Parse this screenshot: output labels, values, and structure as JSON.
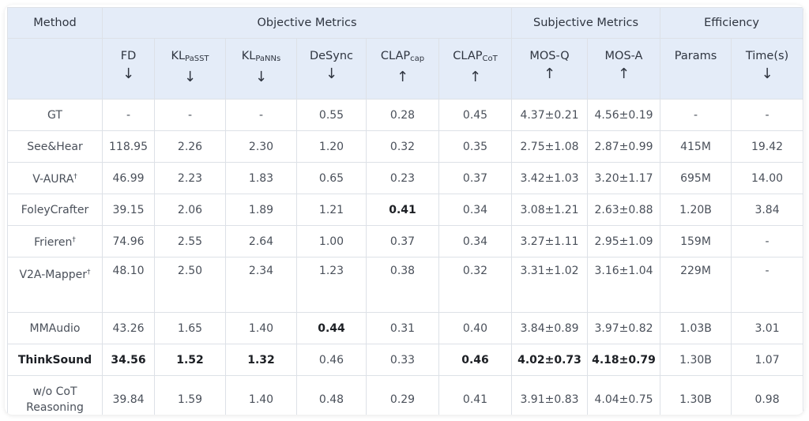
{
  "header": {
    "method": "Method",
    "groups": {
      "objective": "Objective Metrics",
      "subjective": "Subjective Metrics",
      "efficiency": "Efficiency"
    },
    "columns": [
      {
        "main": "FD",
        "sub": "",
        "arrow": "↓"
      },
      {
        "main": "KL",
        "sub": "PaSST",
        "arrow": "↓"
      },
      {
        "main": "KL",
        "sub": "PaNNs",
        "arrow": "↓"
      },
      {
        "main": "DeSync",
        "sub": "",
        "arrow": "↓"
      },
      {
        "main": "CLAP",
        "sub": "cap",
        "arrow": "↑"
      },
      {
        "main": "CLAP",
        "sub": "CoT",
        "arrow": "↑"
      },
      {
        "main": "MOS-Q",
        "sub": "",
        "arrow": "↑"
      },
      {
        "main": "MOS-A",
        "sub": "",
        "arrow": "↑"
      },
      {
        "main": "Params",
        "sub": "",
        "arrow": ""
      },
      {
        "main": "Time(s)",
        "sub": "",
        "arrow": "↓"
      }
    ]
  },
  "rows": [
    {
      "method": "GT",
      "dagger": "",
      "cells": [
        "-",
        "-",
        "-",
        "0.55",
        "0.28",
        "0.45",
        "4.37±0.21",
        "4.56±0.19",
        "-",
        "-"
      ]
    },
    {
      "method": "See&Hear",
      "dagger": "",
      "cells": [
        "118.95",
        "2.26",
        "2.30",
        "1.20",
        "0.32",
        "0.35",
        "2.75±1.08",
        "2.87±0.99",
        "415M",
        "19.42"
      ]
    },
    {
      "method": "V-AURA",
      "dagger": "†",
      "cells": [
        "46.99",
        "2.23",
        "1.83",
        "0.65",
        "0.23",
        "0.37",
        "3.42±1.03",
        "3.20±1.17",
        "695M",
        "14.00"
      ]
    },
    {
      "method": "FoleyCrafter",
      "dagger": "",
      "cells": [
        "39.15",
        "2.06",
        "1.89",
        "1.21",
        "0.41",
        "0.34",
        "3.08±1.21",
        "2.63±0.88",
        "1.20B",
        "3.84"
      ]
    },
    {
      "method": "Frieren",
      "dagger": "†",
      "cells": [
        "74.96",
        "2.55",
        "2.64",
        "1.00",
        "0.37",
        "0.34",
        "3.27±1.11",
        "2.95±1.09",
        "159M",
        "-"
      ]
    },
    {
      "method": "V2A-Mapper",
      "dagger": "†",
      "cells": [
        "48.10",
        "2.50",
        "2.34",
        "1.23",
        "0.38",
        "0.32",
        "3.31±1.02",
        "3.16±1.04",
        "229M",
        "-"
      ]
    },
    {
      "method": "MMAudio",
      "dagger": "",
      "cells": [
        "43.26",
        "1.65",
        "1.40",
        "0.44",
        "0.31",
        "0.40",
        "3.84±0.89",
        "3.97±0.82",
        "1.03B",
        "3.01"
      ]
    },
    {
      "method": "ThinkSound",
      "dagger": "",
      "cells": [
        "34.56",
        "1.52",
        "1.32",
        "0.46",
        "0.33",
        "0.46",
        "4.02±0.73",
        "4.18±0.79",
        "1.30B",
        "1.07"
      ]
    },
    {
      "method": "w/o CoT Reasoning",
      "dagger": "",
      "cells": [
        "39.84",
        "1.59",
        "1.40",
        "0.48",
        "0.29",
        "0.41",
        "3.91±0.83",
        "4.04±0.75",
        "1.30B",
        "0.98"
      ]
    }
  ]
}
